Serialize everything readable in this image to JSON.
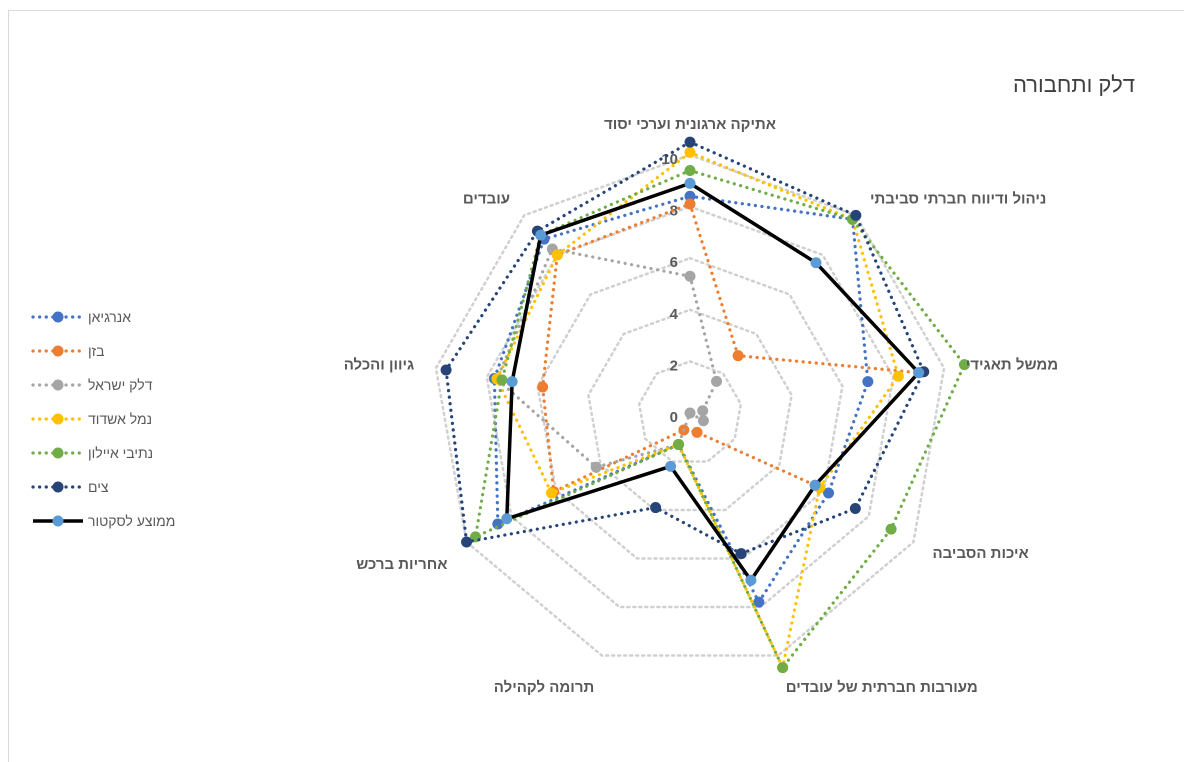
{
  "chart_data": {
    "type": "radar",
    "title": "דלק ותחבורה",
    "axes": [
      "אתיקה ארגונית וערכי יסוד",
      "ניהול ודיווח חברתי סביבתי",
      "ממשל תאגידי",
      "איכות הסביבה",
      "מעורבות חברתית של עובדים",
      "תרומה לקהילה",
      "אחריות ברכש",
      "גיוון והכלה",
      "עובדים"
    ],
    "ticks": [
      "0",
      "2",
      "4",
      "6",
      "8",
      "10"
    ],
    "range": [
      0,
      10
    ],
    "gridlines": true,
    "legend_position": "left",
    "series": [
      {
        "name": "אנרגיאן",
        "color": "#4472C4",
        "style": "dotted",
        "values": [
          8.4,
          9.8,
          7.0,
          6.2,
          7.8,
          1.3,
          8.6,
          7.7,
          8.8
        ]
      },
      {
        "name": "בזן",
        "color": "#ED7D31",
        "style": "dotted",
        "values": [
          8.1,
          2.9,
          9.0,
          5.6,
          0.8,
          0.7,
          6.1,
          5.8,
          8.0
        ]
      },
      {
        "name": "דלק ישראל",
        "color": "#A5A5A5",
        "style": "dotted",
        "values": [
          5.3,
          1.6,
          0.5,
          0.6,
          0.0,
          1.3,
          4.2,
          7.6,
          8.3
        ]
      },
      {
        "name": "נמל אשדוד",
        "color": "#FFC000",
        "style": "dotted",
        "values": [
          10.1,
          9.8,
          8.2,
          5.8,
          10.5,
          1.3,
          6.2,
          7.6,
          8.0
        ]
      },
      {
        "name": "נתיבי איילון",
        "color": "#70AD47",
        "style": "dotted",
        "values": [
          9.4,
          9.8,
          10.8,
          9.0,
          10.5,
          1.3,
          9.6,
          7.4,
          9.0
        ]
      },
      {
        "name": "צים",
        "color": "#264478",
        "style": "dotted",
        "values": [
          10.5,
          10.0,
          9.2,
          7.4,
          5.8,
          3.9,
          10.0,
          9.6,
          9.2
        ]
      },
      {
        "name": "ממוצע לסקטור",
        "color": "#000000",
        "marker_color": "#5B9BD5",
        "style": "solid",
        "values": [
          8.9,
          7.6,
          9.0,
          5.6,
          6.9,
          2.2,
          8.2,
          7.0,
          9.0
        ]
      }
    ]
  }
}
